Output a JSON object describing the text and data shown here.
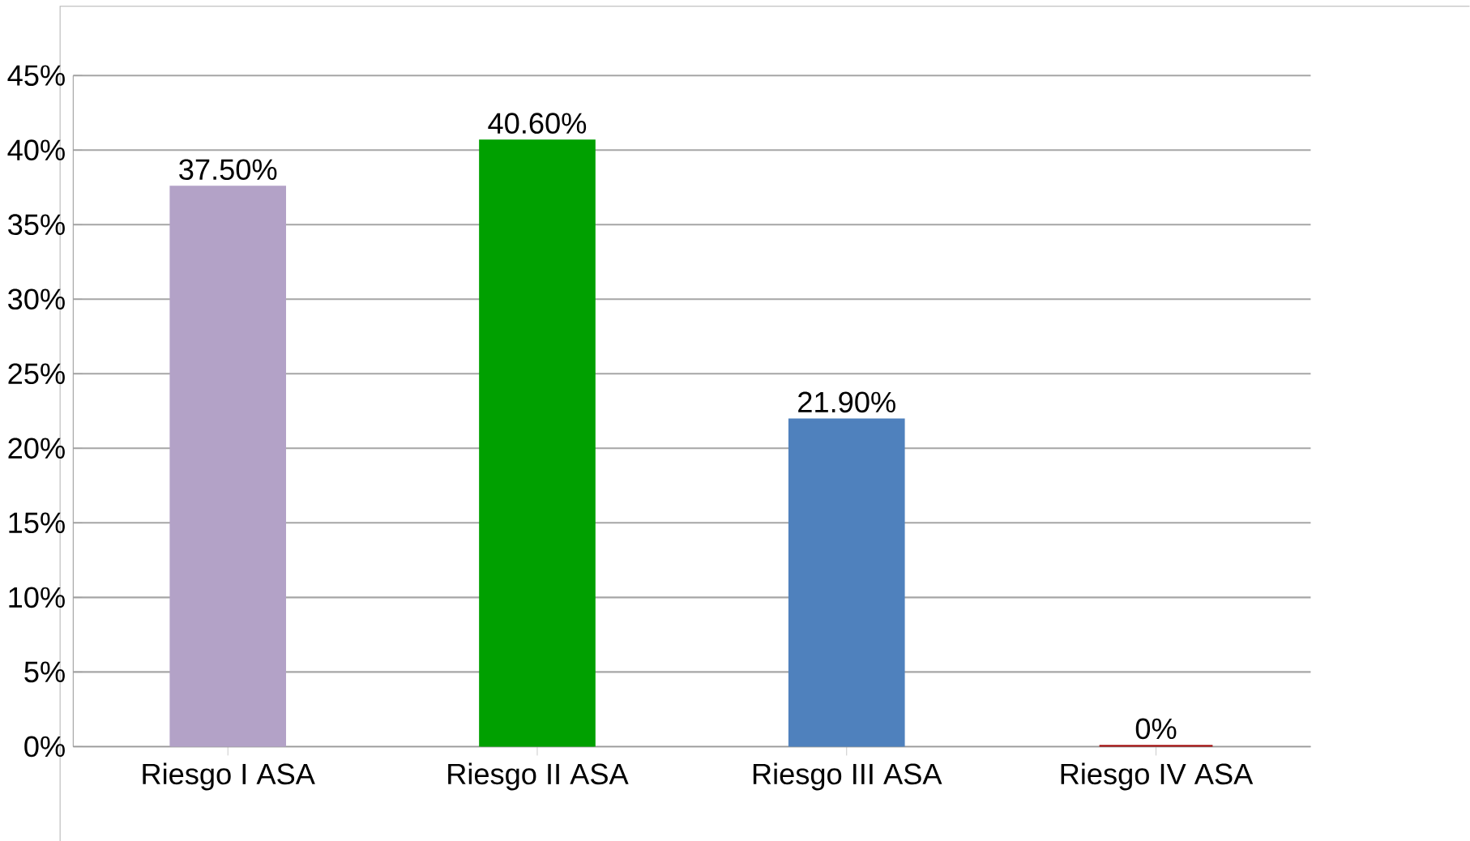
{
  "chart_data": {
    "type": "bar",
    "categories": [
      "Riesgo I ASA",
      "Riesgo II ASA",
      "Riesgo III ASA",
      "Riesgo IV ASA"
    ],
    "values": [
      37.5,
      40.6,
      21.9,
      0
    ],
    "colors": [
      "#b3a2c7",
      "#00a000",
      "#4f81bd",
      "#a00000"
    ],
    "value_labels": [
      "37.50%",
      "40.60%",
      "21.90%",
      "0%"
    ],
    "ylim": [
      0,
      45
    ],
    "yticks": [
      {
        "value": 0,
        "label": "0%"
      },
      {
        "value": 5,
        "label": "5%"
      },
      {
        "value": 10,
        "label": "10%"
      },
      {
        "value": 15,
        "label": "15%"
      },
      {
        "value": 20,
        "label": "20%"
      },
      {
        "value": 25,
        "label": "25%"
      },
      {
        "value": 30,
        "label": "30%"
      },
      {
        "value": 35,
        "label": "35%"
      },
      {
        "value": 40,
        "label": "40%"
      },
      {
        "value": 45,
        "label": "45%"
      }
    ],
    "grid": "y"
  }
}
